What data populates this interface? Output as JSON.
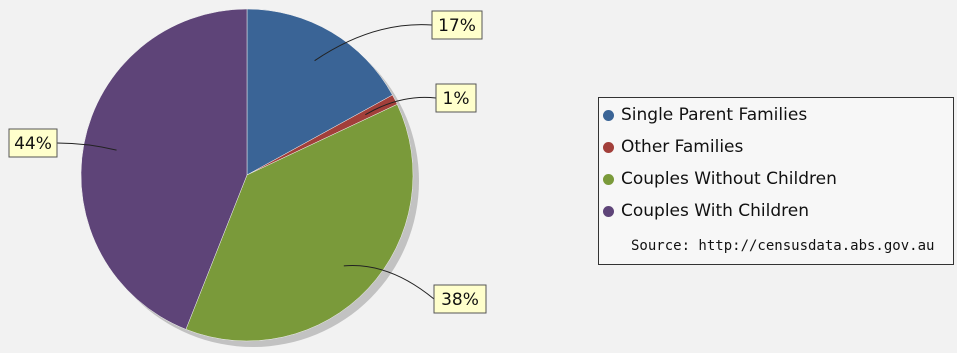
{
  "chart_data": {
    "type": "pie",
    "slices": [
      {
        "name": "Single Parent Families",
        "value": 17,
        "label": "17%",
        "color": "#3a6496"
      },
      {
        "name": "Other Families",
        "value": 1,
        "label": "1%",
        "color": "#a23f3a"
      },
      {
        "name": "Couples Without Children",
        "value": 38,
        "label": "38%",
        "color": "#7a9a3a"
      },
      {
        "name": "Couples With Children",
        "value": 44,
        "label": "44%",
        "color": "#5e4478"
      }
    ],
    "legend_position": "right",
    "source_note": "Source: http://censusdata.abs.gov.au"
  }
}
